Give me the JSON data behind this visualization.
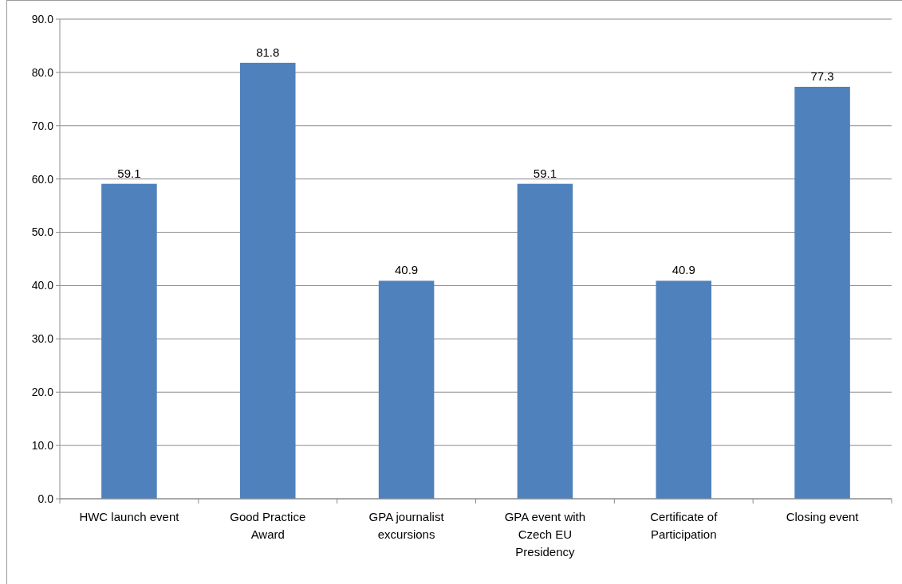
{
  "chart_data": {
    "type": "bar",
    "categories": [
      "HWC launch event",
      "Good Practice Award",
      "GPA journalist excursions",
      "GPA event with Czech EU Presidency",
      "Certificate of Participation",
      "Closing event"
    ],
    "values": [
      59.1,
      81.8,
      40.9,
      59.1,
      40.9,
      77.3
    ],
    "color": "#4f81bd",
    "ylim": [
      0,
      90
    ],
    "yticks": [
      {
        "value": 0,
        "label": "0.0"
      },
      {
        "value": 10,
        "label": "10.0"
      },
      {
        "value": 20,
        "label": "20.0"
      },
      {
        "value": 30,
        "label": "30.0"
      },
      {
        "value": 40,
        "label": "40.0"
      },
      {
        "value": 50,
        "label": "50.0"
      },
      {
        "value": 60,
        "label": "60.0"
      },
      {
        "value": 70,
        "label": "70.0"
      },
      {
        "value": 80,
        "label": "80.0"
      },
      {
        "value": 90,
        "label": "90.0"
      }
    ],
    "grid": "y",
    "data_labels": true
  }
}
